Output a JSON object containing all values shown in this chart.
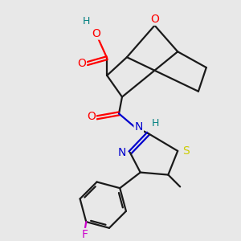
{
  "background_color": "#e8e8e8",
  "bond_color": "#1a1a1a",
  "atom_colors": {
    "O": "#ff0000",
    "N": "#0000cd",
    "S": "#cccc00",
    "F": "#cc00cc",
    "H": "#008080",
    "C": "#1a1a1a"
  },
  "figsize": [
    3.0,
    3.0
  ],
  "dpi": 100,
  "lw": 1.6
}
